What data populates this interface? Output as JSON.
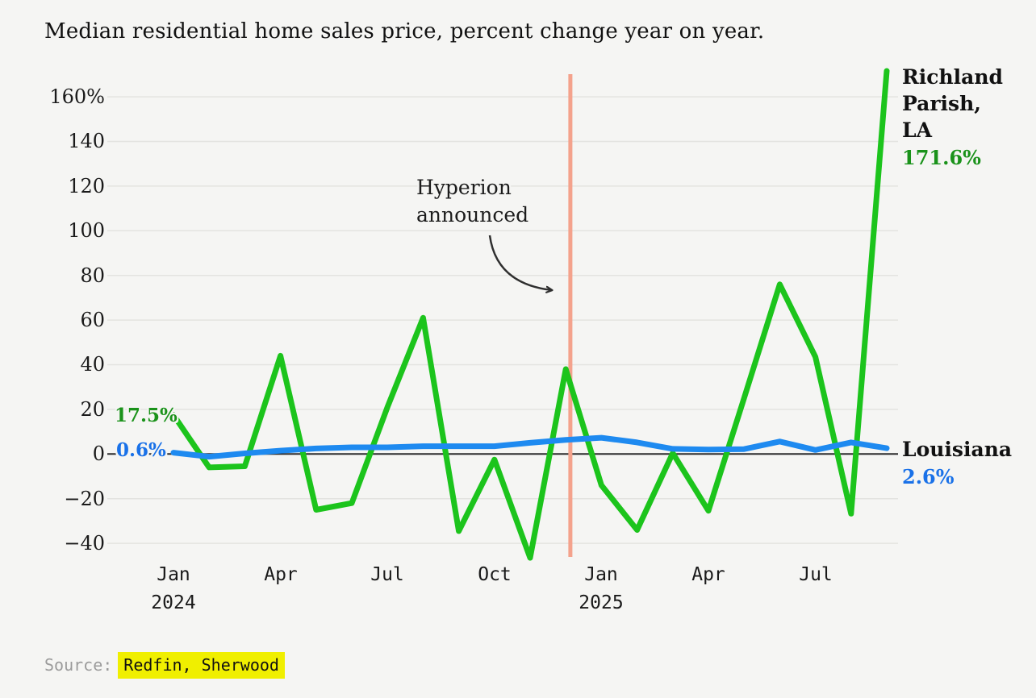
{
  "title": "Median residential home sales price, percent change year on year.",
  "annotation": {
    "line1": "Hyperion",
    "line2": "announced"
  },
  "start_labels": {
    "richland": "17.5%",
    "louisiana": "0.6%"
  },
  "series_labels": {
    "richland": {
      "name": "Richland Parish, LA",
      "value": "171.6%"
    },
    "louisiana": {
      "name": "Louisiana",
      "value": "2.6%"
    }
  },
  "source": {
    "prefix": "Source:",
    "value": "Redfin, Sherwood"
  },
  "colors": {
    "richland_line": "#1cc41c",
    "louisiana_line": "#1e8af0",
    "richland_text": "#1a921a",
    "louisiana_text": "#1971e8",
    "event_line": "#f4a28c",
    "grid": "#e3e3e0",
    "zero_line": "#2d2d2d",
    "background": "#f5f5f3",
    "highlight": "#f0ef00"
  },
  "chart_data": {
    "type": "line",
    "title": "Median residential home sales price, percent change year on year.",
    "xlabel": "",
    "ylabel": "percent change year on year",
    "ylim": [
      -50,
      175
    ],
    "grid": true,
    "legend_position": "right-edge-labels",
    "x": [
      "Jan 2024",
      "Feb 2024",
      "Mar 2024",
      "Apr 2024",
      "May 2024",
      "Jun 2024",
      "Jul 2024",
      "Aug 2024",
      "Sep 2024",
      "Oct 2024",
      "Nov 2024",
      "Dec 2024",
      "Jan 2025",
      "Feb 2025",
      "Mar 2025",
      "Apr 2025",
      "May 2025",
      "Jun 2025",
      "Jul 2025",
      "Aug 2025",
      "Sep 2025"
    ],
    "x_ticks": [
      {
        "i": 0,
        "label": "Jan",
        "year": "2024"
      },
      {
        "i": 3,
        "label": "Apr",
        "year": ""
      },
      {
        "i": 6,
        "label": "Jul",
        "year": ""
      },
      {
        "i": 9,
        "label": "Oct",
        "year": ""
      },
      {
        "i": 12,
        "label": "Jan",
        "year": "2025"
      },
      {
        "i": 15,
        "label": "Apr",
        "year": ""
      },
      {
        "i": 18,
        "label": "Jul",
        "year": ""
      }
    ],
    "y_ticks": [
      {
        "v": 160,
        "label": "160%"
      },
      {
        "v": 140,
        "label": "140"
      },
      {
        "v": 120,
        "label": "120"
      },
      {
        "v": 100,
        "label": "100"
      },
      {
        "v": 80,
        "label": "80"
      },
      {
        "v": 60,
        "label": "60"
      },
      {
        "v": 40,
        "label": "40"
      },
      {
        "v": 20,
        "label": "20"
      },
      {
        "v": 0,
        "label": "0"
      },
      {
        "v": -20,
        "label": "−20"
      },
      {
        "v": -40,
        "label": "−40"
      }
    ],
    "series": [
      {
        "id": "richland",
        "name": "Richland Parish, LA",
        "color": "#1cc41c",
        "first_value_label": "17.5%",
        "last_value_label": "171.6%",
        "values": [
          17.5,
          -6,
          -5.5,
          44,
          -25,
          -22,
          21,
          61,
          -34.5,
          -2.5,
          -46.5,
          38,
          -14,
          -34,
          0.4,
          -25.4,
          25,
          76,
          43.5,
          -26.7,
          171.6
        ]
      },
      {
        "id": "louisiana",
        "name": "Louisiana",
        "color": "#1e8af0",
        "first_value_label": "0.6%",
        "last_value_label": "2.6%",
        "values": [
          0.6,
          -1.2,
          0.3,
          1.5,
          2.5,
          3,
          3,
          3.5,
          3.5,
          3.5,
          5,
          6.3,
          7.3,
          5.2,
          2.3,
          2,
          2.2,
          5.6,
          1.8,
          5.2,
          2.6
        ]
      }
    ],
    "event_line": {
      "label": "Hyperion announced",
      "month_index": 11.13,
      "x_month": "Dec 2024"
    }
  }
}
